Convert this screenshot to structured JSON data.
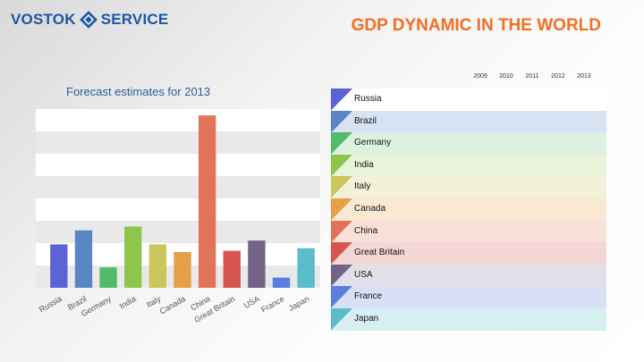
{
  "logo": {
    "left": "VOSTOK",
    "right": "SERVICE"
  },
  "title": "GDP DYNAMIC IN THE WORLD",
  "chart_data": {
    "type": "bar",
    "title": "Forecast estimates for 2013",
    "categories": [
      "Russia",
      "Brazil",
      "Germany",
      "India",
      "Italy",
      "Canada",
      "China",
      "Great Britain",
      "USA",
      "France",
      "Japan"
    ],
    "values": [
      34,
      45,
      16,
      48,
      34,
      28,
      135,
      29,
      37,
      8,
      31
    ],
    "colors": [
      "#5b63d6",
      "#5a86c5",
      "#52bb6a",
      "#8dc64b",
      "#c9c65a",
      "#e3a047",
      "#e2735b",
      "#d6554f",
      "#726487",
      "#5b7fe0",
      "#5bbccc"
    ],
    "ylim": [
      0,
      140
    ],
    "grid": true
  },
  "table": {
    "years": [
      "2009",
      "2010",
      "2011",
      "2012",
      "2013"
    ],
    "rows": [
      {
        "name": "Russia",
        "color": "#5b63d6",
        "bg": "#ffffff"
      },
      {
        "name": "Brazil",
        "color": "#5a86c5",
        "bg": "#d7e3f2"
      },
      {
        "name": "Germany",
        "color": "#52bb6a",
        "bg": "#dcf1e0"
      },
      {
        "name": "India",
        "color": "#8dc64b",
        "bg": "#e8f3d9"
      },
      {
        "name": "Italy",
        "color": "#c9c65a",
        "bg": "#f3f1d7"
      },
      {
        "name": "Canada",
        "color": "#e3a047",
        "bg": "#f9e8d2"
      },
      {
        "name": "China",
        "color": "#e2735b",
        "bg": "#f8dfd8"
      },
      {
        "name": "Great Britain",
        "color": "#d6554f",
        "bg": "#f4d7d5"
      },
      {
        "name": "USA",
        "color": "#726487",
        "bg": "#e3dfe8"
      },
      {
        "name": "France",
        "color": "#5b7fe0",
        "bg": "#d8e0f6"
      },
      {
        "name": "Japan",
        "color": "#5bbccc",
        "bg": "#d8eff2"
      }
    ]
  }
}
